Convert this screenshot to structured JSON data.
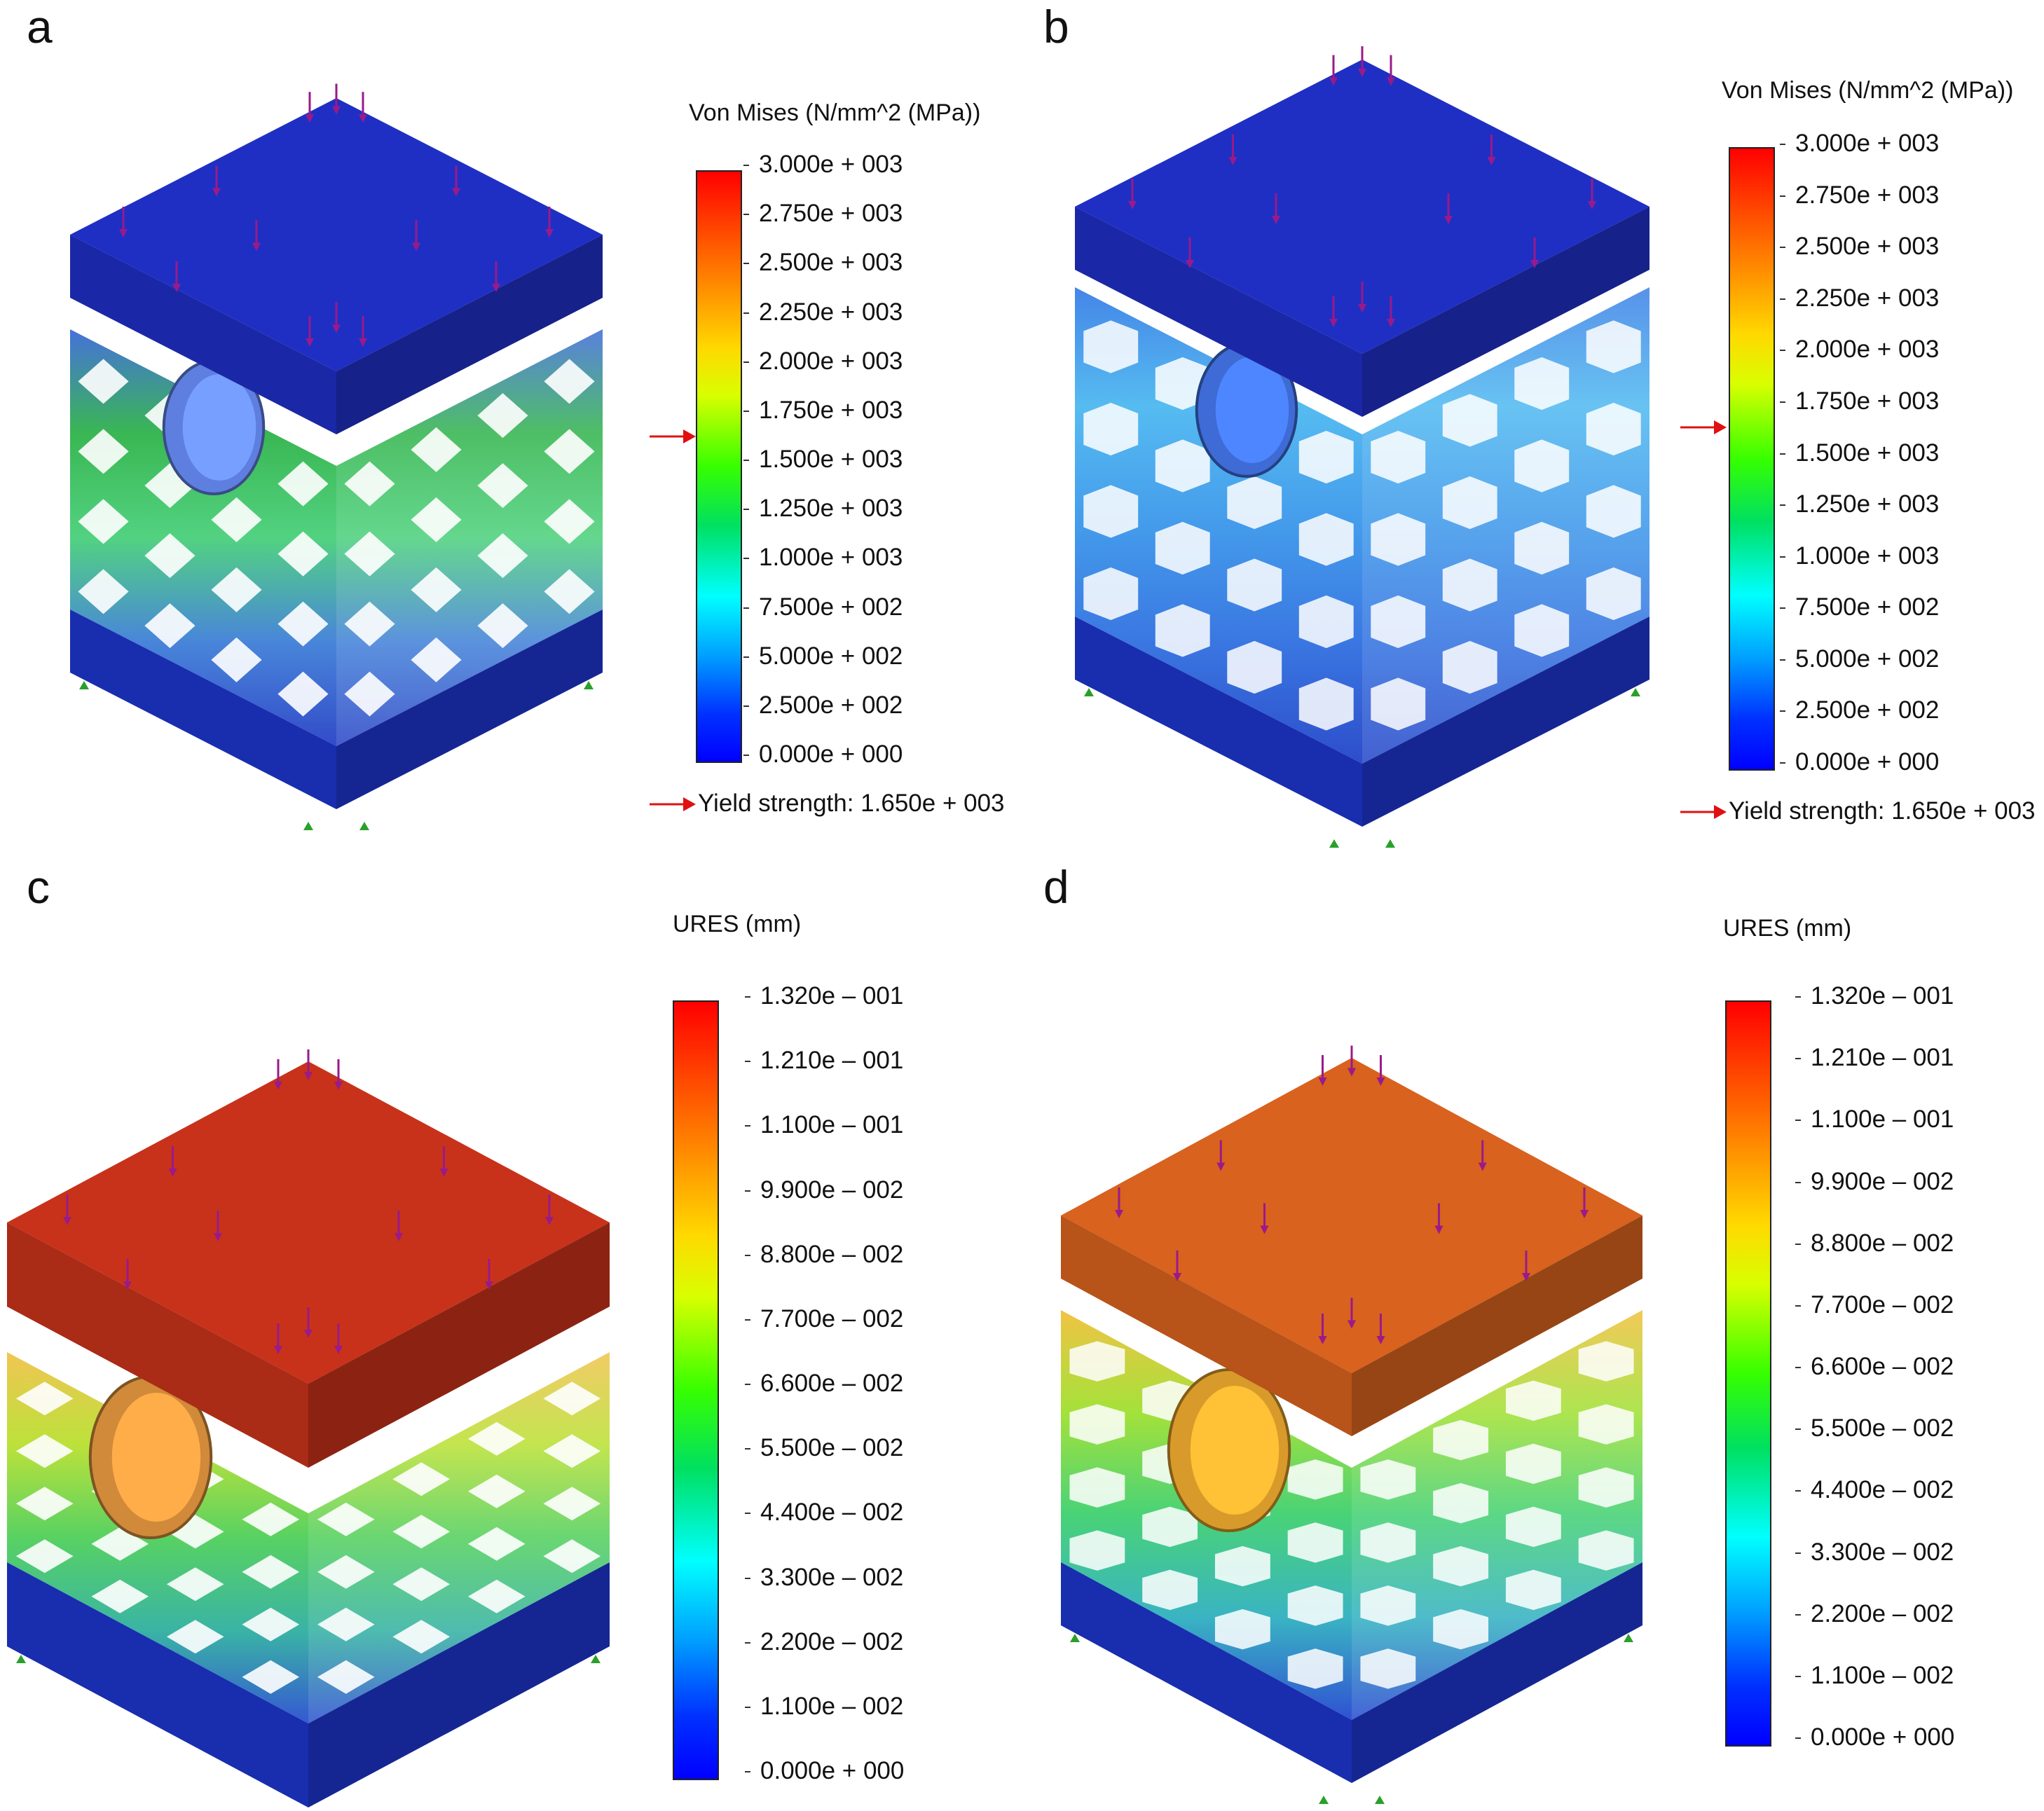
{
  "panels": {
    "a": {
      "letter": "a",
      "legend_title": "Von Mises (N/mm^2 (MPa))",
      "ticks": [
        "3.000e + 003",
        "2.750e + 003",
        "2.500e + 003",
        "2.250e + 003",
        "2.000e + 003",
        "1.750e + 003",
        "1.500e + 003",
        "1.250e + 003",
        "1.000e + 003",
        "7.500e + 002",
        "5.000e + 002",
        "2.500e + 002",
        "0.000e + 000"
      ],
      "yield_label": "Yield strength: 1.650e + 003",
      "top_plate_color": "#1f2fc4",
      "lattice": "diamond"
    },
    "b": {
      "letter": "b",
      "legend_title": "Von Mises (N/mm^2 (MPa))",
      "ticks": [
        "3.000e + 003",
        "2.750e + 003",
        "2.500e + 003",
        "2.250e + 003",
        "2.000e + 003",
        "1.750e + 003",
        "1.500e + 003",
        "1.250e + 003",
        "1.000e + 003",
        "7.500e + 002",
        "5.000e + 002",
        "2.500e + 002",
        "0.000e + 000"
      ],
      "yield_label": "Yield strength: 1.650e + 003",
      "top_plate_color": "#1f2fc4",
      "lattice": "honeycomb"
    },
    "c": {
      "letter": "c",
      "legend_title": "URES (mm)",
      "ticks": [
        "1.320e – 001",
        "1.210e – 001",
        "1.100e – 001",
        "9.900e – 002",
        "8.800e – 002",
        "7.700e – 002",
        "6.600e – 002",
        "5.500e – 002",
        "4.400e – 002",
        "3.300e – 002",
        "2.200e – 002",
        "1.100e – 002",
        "0.000e + 000"
      ],
      "top_plate_color": "#c8321a",
      "lattice": "diamond"
    },
    "d": {
      "letter": "d",
      "legend_title": "URES (mm)",
      "ticks": [
        "1.320e – 001",
        "1.210e – 001",
        "1.100e – 001",
        "9.900e – 002",
        "8.800e – 002",
        "7.700e – 002",
        "6.600e – 002",
        "5.500e – 002",
        "4.400e – 002",
        "3.300e – 002",
        "2.200e – 002",
        "1.100e – 002",
        "0.000e + 000"
      ],
      "top_plate_color": "#d8621e",
      "lattice": "honeycomb"
    }
  },
  "colors": {
    "base_plate": "#1a2fb8",
    "load_arrow": "#9a1a8a",
    "fixture": "#2aa02a",
    "yield_arrow": "#e01010"
  }
}
